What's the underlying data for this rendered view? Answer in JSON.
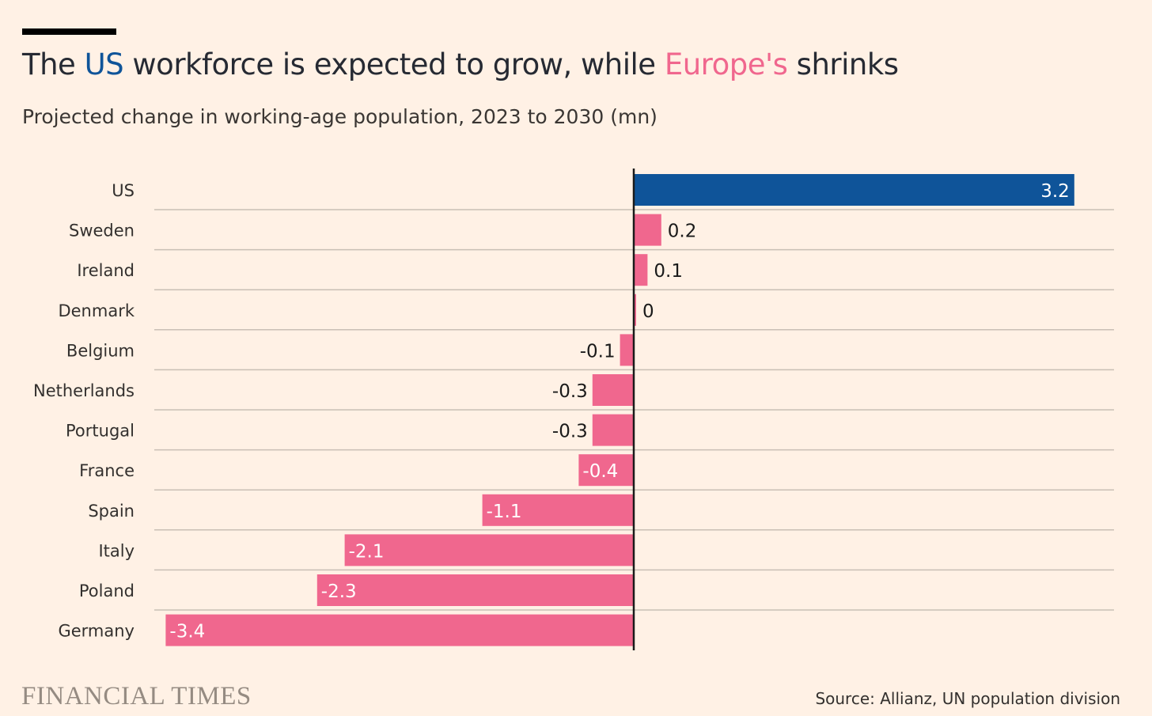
{
  "title": {
    "prefix": "The ",
    "us": "US",
    "middle": " workforce is expected to grow, while ",
    "europe": "Europe's",
    "suffix": " shrinks"
  },
  "colors": {
    "us": "#0f5499",
    "europe": "#f0678e",
    "background": "#fff1e5",
    "grid": "#c9bfb5",
    "axis": "#1a1a1a"
  },
  "chart_data": {
    "type": "bar",
    "orientation": "horizontal",
    "title": "The US workforce is expected to grow, while Europe's shrinks",
    "subtitle": "Projected change in working-age population, 2023 to 2030 (mn)",
    "categories": [
      "US",
      "Sweden",
      "Ireland",
      "Denmark",
      "Belgium",
      "Netherlands",
      "Portugal",
      "France",
      "Spain",
      "Italy",
      "Poland",
      "Germany"
    ],
    "values": [
      3.2,
      0.2,
      0.1,
      0,
      -0.1,
      -0.3,
      -0.3,
      -0.4,
      -1.1,
      -2.1,
      -2.3,
      -3.4
    ],
    "labels": [
      "3.2",
      "0.2",
      "0.1",
      "0",
      "-0.1",
      "-0.3",
      "-0.3",
      "-0.4",
      "-1.1",
      "-2.1",
      "-2.3",
      "-3.4"
    ],
    "series_colors": [
      "us",
      "europe",
      "europe",
      "europe",
      "europe",
      "europe",
      "europe",
      "europe",
      "europe",
      "europe",
      "europe",
      "europe"
    ],
    "xlim": [
      -3.4,
      3.2
    ],
    "grid": true
  },
  "footer": {
    "brand": "FINANCIAL TIMES",
    "source": "Source: Allianz, UN population division"
  }
}
